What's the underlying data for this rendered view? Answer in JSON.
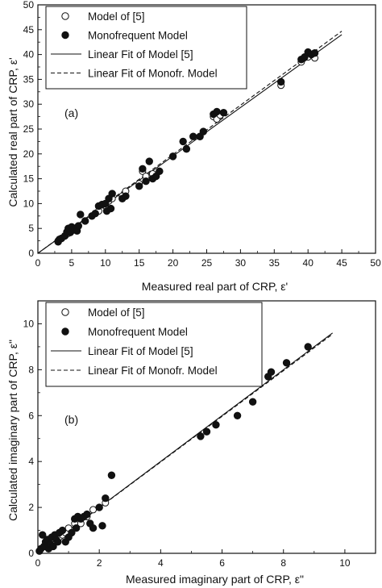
{
  "chart_data": [
    {
      "type": "scatter",
      "panel_label": "(a)",
      "xlabel": "Measured real part of CRP, ε'",
      "ylabel": "Calculated real part of CRP, ε'",
      "xlim": [
        0,
        50
      ],
      "ylim": [
        0,
        50
      ],
      "xticks": [
        0,
        5,
        10,
        15,
        20,
        25,
        30,
        35,
        40,
        45,
        50
      ],
      "yticks": [
        0,
        5,
        10,
        15,
        20,
        25,
        30,
        35,
        40,
        45,
        50
      ],
      "legend_position": "top-left",
      "series": [
        {
          "name": "Model of [5]",
          "marker": "open-circle",
          "x": [
            3.0,
            3.5,
            4.0,
            4.5,
            5.0,
            5.5,
            6.0,
            7.0,
            8.0,
            9.0,
            10.0,
            10.5,
            11.0,
            12.5,
            13.0,
            15.0,
            15.5,
            16.0,
            17.0,
            18.0,
            20.0,
            22.0,
            24.0,
            26.0,
            26.5,
            27.0,
            36.0,
            39.0,
            40.0,
            41.0
          ],
          "y": [
            2.5,
            3.0,
            3.5,
            4.0,
            4.5,
            5.0,
            5.5,
            6.5,
            7.5,
            8.5,
            9.5,
            10.5,
            11.0,
            11.5,
            12.5,
            14.0,
            16.5,
            15.5,
            16.0,
            16.5,
            19.5,
            21.0,
            23.5,
            27.5,
            27.0,
            27.8,
            33.8,
            38.5,
            39.5,
            39.3
          ]
        },
        {
          "name": "Monofrequent Model",
          "marker": "filled-circle",
          "x": [
            3.0,
            3.2,
            3.5,
            4.0,
            4.3,
            4.5,
            4.8,
            5.0,
            5.2,
            5.5,
            5.8,
            6.0,
            6.3,
            7.0,
            8.0,
            8.5,
            9.0,
            9.5,
            10.0,
            10.2,
            10.5,
            10.8,
            11.0,
            12.5,
            13.0,
            15.0,
            15.5,
            16.0,
            16.5,
            17.0,
            17.5,
            18.0,
            20.0,
            21.5,
            22.0,
            23.0,
            24.0,
            24.5,
            26.0,
            26.5,
            27.5,
            36.0,
            39.0,
            39.5,
            40.0,
            40.5,
            41.0
          ],
          "y": [
            2.3,
            2.8,
            3.0,
            3.5,
            4.3,
            5.0,
            4.2,
            5.3,
            4.8,
            5.0,
            4.5,
            5.5,
            7.8,
            6.5,
            7.5,
            8.0,
            9.5,
            9.8,
            10.0,
            8.5,
            11.0,
            9.0,
            12.0,
            11.0,
            11.5,
            13.5,
            17.0,
            14.5,
            18.5,
            15.0,
            15.5,
            16.5,
            19.5,
            22.5,
            21.0,
            23.5,
            23.5,
            24.5,
            28.0,
            28.5,
            28.3,
            34.5,
            39.0,
            39.5,
            40.5,
            40.0,
            40.3
          ]
        },
        {
          "name": "Linear Fit of Model [5]",
          "line": "solid",
          "x": [
            0,
            45
          ],
          "y": [
            0,
            44.0
          ]
        },
        {
          "name": "Linear Fit of Monofr. Model",
          "line": "dashed",
          "x": [
            0,
            45
          ],
          "y": [
            0,
            44.7
          ]
        }
      ]
    },
    {
      "type": "scatter",
      "panel_label": "(b)",
      "xlabel": "Measured imaginary part of CRP, ε\"",
      "ylabel": "Calculated imaginary part of CRP, ε\"",
      "xlim": [
        0,
        11
      ],
      "ylim": [
        0,
        11
      ],
      "xticks": [
        0,
        2,
        4,
        6,
        8,
        10
      ],
      "yticks": [
        0,
        2,
        4,
        6,
        8,
        10
      ],
      "legend_position": "top-left",
      "series": [
        {
          "name": "Model of [5]",
          "marker": "open-circle",
          "x": [
            0.1,
            0.2,
            0.3,
            0.4,
            0.5,
            0.6,
            0.7,
            0.8,
            0.9,
            1.0,
            1.2,
            1.4,
            1.6,
            1.8,
            2.2
          ],
          "y": [
            0.2,
            0.3,
            0.4,
            0.5,
            0.6,
            0.5,
            0.7,
            0.8,
            0.9,
            1.1,
            1.3,
            1.3,
            1.6,
            1.9,
            2.2
          ]
        },
        {
          "name": "Monofrequent Model",
          "marker": "filled-circle",
          "x": [
            0.05,
            0.1,
            0.15,
            0.2,
            0.25,
            0.3,
            0.35,
            0.4,
            0.45,
            0.5,
            0.55,
            0.6,
            0.65,
            0.7,
            0.8,
            0.9,
            1.0,
            1.1,
            1.2,
            1.25,
            1.3,
            1.4,
            1.5,
            1.6,
            1.7,
            1.8,
            2.0,
            2.1,
            2.2,
            2.4,
            5.3,
            5.5,
            5.8,
            6.5,
            7.0,
            7.5,
            7.6,
            8.1,
            8.8
          ],
          "y": [
            0.1,
            0.2,
            0.8,
            0.3,
            0.5,
            0.6,
            0.2,
            0.4,
            0.7,
            0.3,
            0.8,
            0.6,
            0.5,
            0.9,
            1.0,
            0.5,
            0.7,
            0.9,
            1.5,
            1.1,
            1.6,
            1.5,
            1.6,
            1.7,
            1.3,
            1.1,
            2.0,
            1.2,
            2.4,
            3.4,
            5.1,
            5.3,
            5.6,
            6.0,
            6.6,
            7.7,
            7.9,
            8.3,
            9.0
          ]
        },
        {
          "name": "Linear Fit of Model [5]",
          "line": "solid",
          "x": [
            0,
            9.6
          ],
          "y": [
            0,
            9.6
          ]
        },
        {
          "name": "Linear Fit of Monofr. Model",
          "line": "dashed",
          "x": [
            0,
            9.6
          ],
          "y": [
            0,
            9.55
          ]
        }
      ]
    }
  ]
}
